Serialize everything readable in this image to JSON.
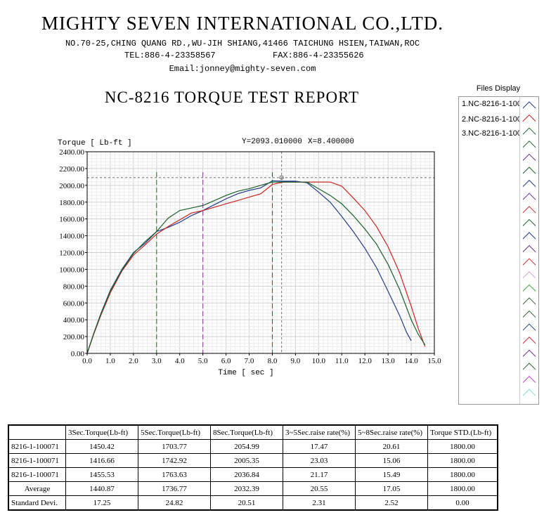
{
  "header": {
    "company": "MIGHTY SEVEN INTERNATIONAL CO.,LTD.",
    "address": "NO.70-25,CHING QUANG RD.,WU-JIH SHIANG,41466 TAICHUNG HSIEN,TAIWAN,ROC",
    "tel": "TEL:886-4-23358567",
    "fax": "FAX:886-4-23355626",
    "email": "Email:jonney@mighty-seven.com",
    "report_title": "NC-8216 TORQUE TEST REPORT"
  },
  "cursor_readout": {
    "y_text": "Y=2093.010000",
    "x_text": "X=8.400000"
  },
  "files_display": {
    "title": "Files Display",
    "items": [
      "1.NC-8216-1-100",
      "2.NC-8216-1-100",
      "3.NC-8216-1-100"
    ]
  },
  "chart_data": {
    "type": "line",
    "ylabel": "Torque [ Lb-ft ]",
    "xlabel": "Time [ sec ]",
    "xlim": [
      0,
      15
    ],
    "ylim": [
      0,
      2400
    ],
    "x_ticks": [
      "0.0",
      "1.0",
      "2.0",
      "3.0",
      "4.0",
      "5.0",
      "6.0",
      "7.0",
      "8.0",
      "9.0",
      "10.0",
      "11.0",
      "12.0",
      "13.0",
      "14.0",
      "15.0"
    ],
    "y_ticks": [
      "0.00",
      "200.00",
      "400.00",
      "600.00",
      "800.00",
      "1000.00",
      "1200.00",
      "1400.00",
      "1600.00",
      "1800.00",
      "2000.00",
      "2200.00",
      "2400.00"
    ],
    "grid": true,
    "colors": {
      "series1": "#1f3c8a",
      "series2": "#c8231e",
      "series3": "#1b5e2a"
    },
    "markers": [
      {
        "x": 3.0,
        "color": "#1b6e1b"
      },
      {
        "x": 5.0,
        "color": "#8b2b9b"
      },
      {
        "x": 8.0,
        "color": "#b0201c"
      }
    ],
    "cursor": {
      "x": 8.4,
      "y": 2093.01
    },
    "series": [
      {
        "x": [
          0,
          0.3,
          0.6,
          1.0,
          1.5,
          2.0,
          2.5,
          3.0,
          3.5,
          4.0,
          4.5,
          5.0,
          5.5,
          6.0,
          6.5,
          7.0,
          7.5,
          8.0,
          8.5,
          9.0,
          9.5,
          10.0,
          10.5,
          11.0,
          11.5,
          12.0,
          12.5,
          13.0,
          13.5,
          13.8,
          14.0
        ],
        "y": [
          0,
          250,
          480,
          750,
          1000,
          1200,
          1310,
          1450,
          1500,
          1560,
          1640,
          1700,
          1770,
          1840,
          1900,
          1940,
          1970,
          2055,
          2050,
          2050,
          2030,
          1920,
          1800,
          1630,
          1450,
          1250,
          1020,
          740,
          450,
          250,
          150
        ]
      },
      {
        "x": [
          0,
          0.3,
          0.6,
          1.0,
          1.5,
          2.0,
          2.5,
          3.0,
          3.5,
          4.0,
          4.5,
          5.0,
          5.5,
          6.0,
          6.5,
          7.0,
          7.5,
          8.0,
          8.5,
          9.0,
          9.5,
          10.0,
          10.5,
          11.0,
          11.5,
          12.0,
          12.5,
          13.0,
          13.5,
          14.0,
          14.3,
          14.6
        ],
        "y": [
          0,
          240,
          460,
          720,
          980,
          1170,
          1290,
          1420,
          1510,
          1590,
          1670,
          1700,
          1740,
          1780,
          1820,
          1860,
          1900,
          2010,
          2040,
          2040,
          2040,
          2040,
          2040,
          1990,
          1850,
          1700,
          1510,
          1270,
          960,
          560,
          300,
          80
        ]
      },
      {
        "x": [
          0,
          0.3,
          0.6,
          1.0,
          1.5,
          2.0,
          2.5,
          3.0,
          3.5,
          4.0,
          4.5,
          5.0,
          5.5,
          6.0,
          6.5,
          7.0,
          7.5,
          8.0,
          8.5,
          9.0,
          9.5,
          10.0,
          10.5,
          11.0,
          11.5,
          12.0,
          12.5,
          13.0,
          13.5,
          14.0,
          14.3,
          14.6
        ],
        "y": [
          0,
          250,
          470,
          740,
          990,
          1190,
          1330,
          1450,
          1610,
          1700,
          1730,
          1760,
          1820,
          1880,
          1930,
          1960,
          2000,
          2040,
          2040,
          2040,
          2040,
          1960,
          1880,
          1780,
          1640,
          1480,
          1300,
          1060,
          760,
          400,
          230,
          100
        ]
      }
    ]
  },
  "results_table": {
    "headers": [
      "",
      "3Sec.Torque(Lb-ft)",
      "5Sec.Torque(Lb-ft)",
      "8Sec.Torque(Lb-ft)",
      "3~5Sec.raise rate(%)",
      "5~8Sec.raise rate(%)",
      "Torque STD.(Lb-ft)"
    ],
    "rows": [
      [
        "8216-1-100071",
        "1450.42",
        "1703.77",
        "2054.99",
        "17.47",
        "20.61",
        "1800.00"
      ],
      [
        "8216-1-100071",
        "1416.66",
        "1742.92",
        "2005.35",
        "23.03",
        "15.06",
        "1800.00"
      ],
      [
        "8216-1-100071",
        "1455.53",
        "1763.63",
        "2036.84",
        "21.17",
        "15.49",
        "1800.00"
      ],
      [
        "Average",
        "1440.87",
        "1736.77",
        "2032.39",
        "20.55",
        "17.05",
        "1800.00"
      ],
      [
        "Standard Devi.",
        "17.25",
        "24.82",
        "20.51",
        "2.31",
        "2.52",
        "0.00"
      ]
    ]
  }
}
